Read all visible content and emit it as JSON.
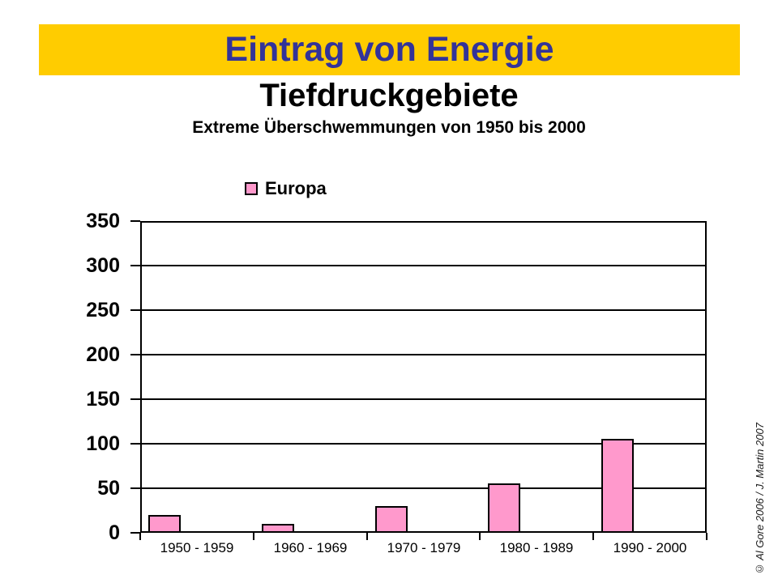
{
  "header": {
    "title": "Eintrag von Energie"
  },
  "footer": {
    "credit": "© Al Gore 2006 / J. Martin 2007"
  },
  "colors": {
    "banner_bg": "#FFCC00",
    "banner_text": "#333399",
    "bar_fill": "#FF99CC",
    "axis": "#000000"
  },
  "chart_data": {
    "type": "bar",
    "title": "Tiefdruckgebiete",
    "subtitle": "Extreme Überschwemmungen von 1950 bis 2000",
    "categories": [
      "1950 - 1959",
      "1960 - 1969",
      "1970 - 1979",
      "1980 - 1989",
      "1990 - 2000"
    ],
    "series": [
      {
        "name": "Europa",
        "color": "#FF99CC",
        "values": [
          20,
          10,
          30,
          55,
          105
        ]
      }
    ],
    "xlabel": "",
    "ylabel": "",
    "ylim": [
      0,
      350
    ],
    "ytick_step": 50,
    "grid": true,
    "legend_position": "top-left"
  }
}
